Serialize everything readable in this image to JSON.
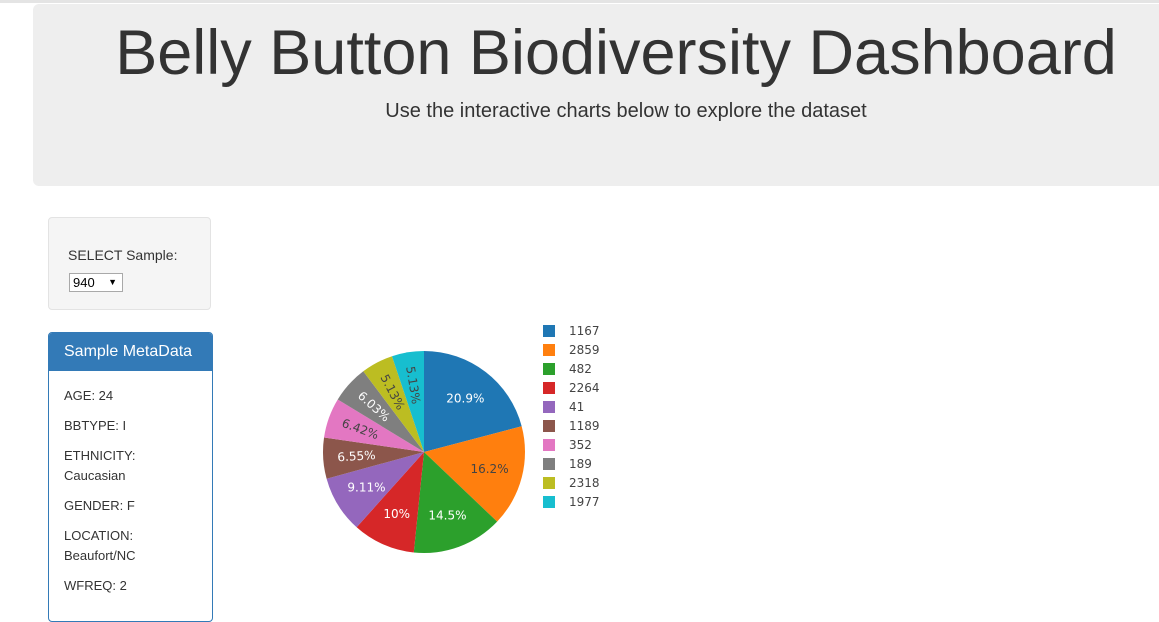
{
  "header": {
    "title": "Belly Button Biodiversity Dashboard",
    "subtitle": "Use the interactive charts below to explore the dataset"
  },
  "selector": {
    "label": "SELECT Sample:",
    "value": "940"
  },
  "metadata": {
    "heading": "Sample MetaData",
    "items": [
      "AGE: 24",
      "BBTYPE: I",
      "ETHNICITY:",
      "Caucasian",
      "GENDER: F",
      "LOCATION:",
      "Beaufort/NC",
      "WFREQ: 2"
    ]
  },
  "chart_data": {
    "type": "pie",
    "labels": [
      "1167",
      "2859",
      "482",
      "2264",
      "41",
      "1189",
      "352",
      "189",
      "2318",
      "1977"
    ],
    "values": [
      20.9,
      16.2,
      14.5,
      10,
      9.11,
      6.55,
      6.42,
      6.03,
      5.13,
      5.13
    ],
    "display": [
      "20.9%",
      "16.2%",
      "14.5%",
      "10%",
      "9.11%",
      "6.55%",
      "6.42%",
      "6.03%",
      "5.13%",
      "5.13%"
    ],
    "colors": [
      "#1f77b4",
      "#ff7f0e",
      "#2ca02c",
      "#d62728",
      "#9467bd",
      "#8c564b",
      "#e377c2",
      "#7f7f7f",
      "#bcbd22",
      "#17becf"
    ],
    "legend_position": "right"
  }
}
